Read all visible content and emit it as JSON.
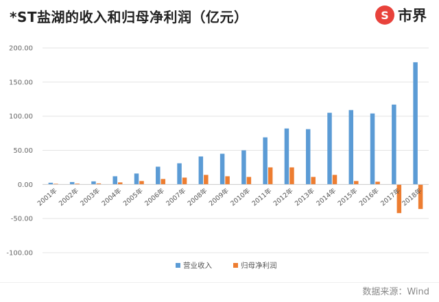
{
  "header": {
    "title": "*ST盐湖的收入和归母净利润（亿元）",
    "logo_text": "市界",
    "logo_mark": "S"
  },
  "source": "数据来源：Wind",
  "colors": {
    "revenue": "#5b9bd5",
    "profit": "#ed7d31",
    "grid": "#e3e3e3"
  },
  "chart_data": {
    "type": "bar",
    "title": "*ST盐湖的收入和归母净利润（亿元）",
    "categories": [
      "2001年",
      "2002年",
      "2003年",
      "2004年",
      "2005年",
      "2006年",
      "2007年",
      "2008年",
      "2009年",
      "2010年",
      "2011年",
      "2012年",
      "2013年",
      "2014年",
      "2015年",
      "2016年",
      "2017年",
      "2018年"
    ],
    "series": [
      {
        "name": "营业收入",
        "values": [
          2.5,
          3.5,
          4.5,
          12,
          16,
          26,
          31,
          41,
          45,
          50,
          69,
          82,
          81,
          105,
          109,
          104,
          117,
          179
        ]
      },
      {
        "name": "归母净利润",
        "values": [
          1,
          1.2,
          1.5,
          3,
          5,
          8,
          10,
          14,
          12,
          11,
          25,
          25,
          11,
          14,
          5,
          4,
          -42,
          -36
        ]
      }
    ],
    "ylim": [
      -100,
      200
    ],
    "yticks": [
      -100,
      -50,
      0,
      50,
      100,
      150,
      200
    ],
    "ytick_labels": [
      "-100.00",
      "-50.00",
      "0.00",
      "50.00",
      "100.00",
      "150.00",
      "200.00"
    ],
    "grid": true,
    "legend_position": "bottom",
    "xlabel": "",
    "ylabel": ""
  }
}
